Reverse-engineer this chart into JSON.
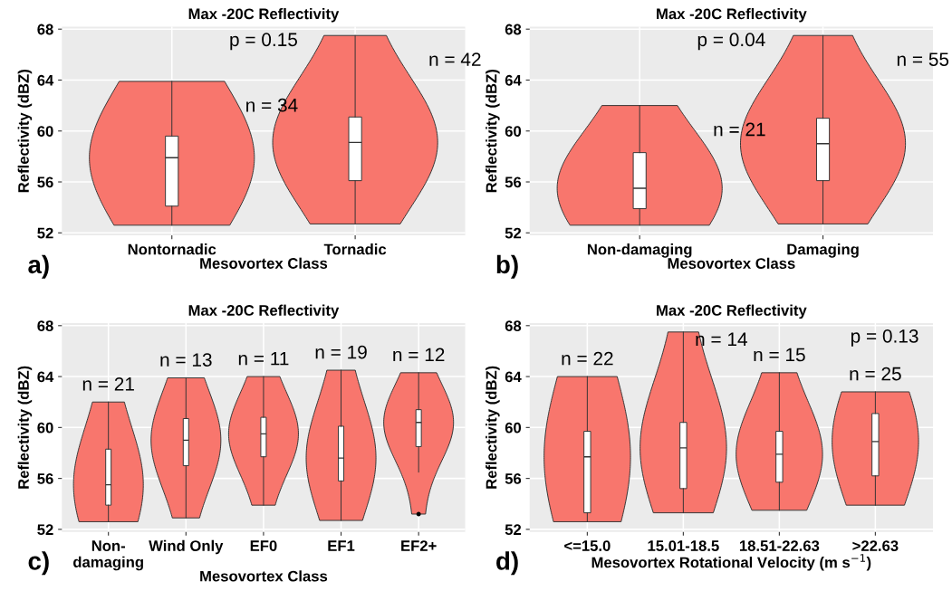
{
  "chart_data": [
    {
      "type": "box",
      "title": "Max -20C Reflectivity",
      "xlabel": "Mesovortex Class",
      "ylabel": "Reflectivity (dBZ)",
      "categories": [
        "Nontornadic",
        "Tornadic"
      ],
      "color": "#ffffff",
      "ylim": [
        51.8,
        68.2
      ],
      "yticks": [
        52,
        56,
        60,
        64,
        68
      ],
      "grid": true,
      "boxes": [
        {
          "low": 52.6,
          "q1": 54.1,
          "median": 57.9,
          "q3": 59.6,
          "high": 63.9
        },
        {
          "low": 52.7,
          "q1": 56.1,
          "median": 59.1,
          "q3": 61.1,
          "high": 67.5
        }
      ],
      "annotations": [
        "a)",
        "p = 0.15",
        "n = 34",
        "n = 42"
      ]
    },
    {
      "type": "box",
      "title": "Max -20C Reflectivity",
      "xlabel": "Mesovortex Class",
      "ylabel": "Reflectivity (dBZ)",
      "categories": [
        "Non-damaging",
        "Damaging"
      ],
      "color": "#ffffff",
      "ylim": [
        51.8,
        68.2
      ],
      "yticks": [
        52,
        56,
        60,
        64,
        68
      ],
      "grid": true,
      "boxes": [
        {
          "low": 52.6,
          "q1": 53.9,
          "median": 55.5,
          "q3": 58.3,
          "high": 62.0
        },
        {
          "low": 52.7,
          "q1": 56.1,
          "median": 59.0,
          "q3": 61.0,
          "high": 67.5
        }
      ],
      "annotations": [
        "b)",
        "p = 0.04",
        "n = 21",
        "n = 55"
      ]
    },
    {
      "type": "box",
      "title": "Max -20C Reflectivity",
      "xlabel": "Mesovortex Class",
      "ylabel": "Reflectivity (dBZ)",
      "categories": [
        "Non-\ndamaging",
        "Wind Only",
        "EF0",
        "EF1",
        "EF2+"
      ],
      "color": "#ffffff",
      "ylim": [
        51.8,
        68.2
      ],
      "yticks": [
        52,
        56,
        60,
        64,
        68
      ],
      "grid": true,
      "boxes": [
        {
          "low": 52.6,
          "q1": 53.9,
          "median": 55.5,
          "q3": 58.3,
          "high": 62.0
        },
        {
          "low": 52.9,
          "q1": 57.0,
          "median": 59.0,
          "q3": 60.7,
          "high": 63.9
        },
        {
          "low": 53.9,
          "q1": 57.7,
          "median": 59.5,
          "q3": 60.8,
          "high": 64.0
        },
        {
          "low": 52.7,
          "q1": 55.8,
          "median": 57.6,
          "q3": 60.1,
          "high": 64.5
        },
        {
          "low": 56.5,
          "q1": 58.5,
          "median": 60.4,
          "q3": 61.4,
          "high": 64.3,
          "outliers": [
            53.2
          ]
        }
      ],
      "annotations": [
        "c)",
        "n = 21",
        "n = 13",
        "n = 11",
        "n = 19",
        "n = 12"
      ]
    },
    {
      "type": "box",
      "title": "Max -20C Reflectivity",
      "xlabel": "Mesovortex Rotational Velocity (m s$^{−1}$)",
      "ylabel": "Reflectivity (dBZ)",
      "categories": [
        "<=15.0",
        "15.01-18.5",
        "18.51-22.63",
        ">22.63"
      ],
      "color": "#ffffff",
      "ylim": [
        51.8,
        68.2
      ],
      "yticks": [
        52,
        56,
        60,
        64,
        68
      ],
      "grid": true,
      "boxes": [
        {
          "low": 52.6,
          "q1": 53.3,
          "median": 57.7,
          "q3": 59.7,
          "high": 64.0
        },
        {
          "low": 53.3,
          "q1": 55.2,
          "median": 58.4,
          "q3": 60.4,
          "high": 67.5
        },
        {
          "low": 53.5,
          "q1": 55.7,
          "median": 57.9,
          "q3": 59.7,
          "high": 64.3
        },
        {
          "low": 53.9,
          "q1": 56.2,
          "median": 58.9,
          "q3": 61.1,
          "high": 62.8
        }
      ],
      "annotations": [
        "d)",
        "p = 0.13",
        "n = 22",
        "n = 14",
        "n = 15",
        "n = 25"
      ]
    }
  ]
}
